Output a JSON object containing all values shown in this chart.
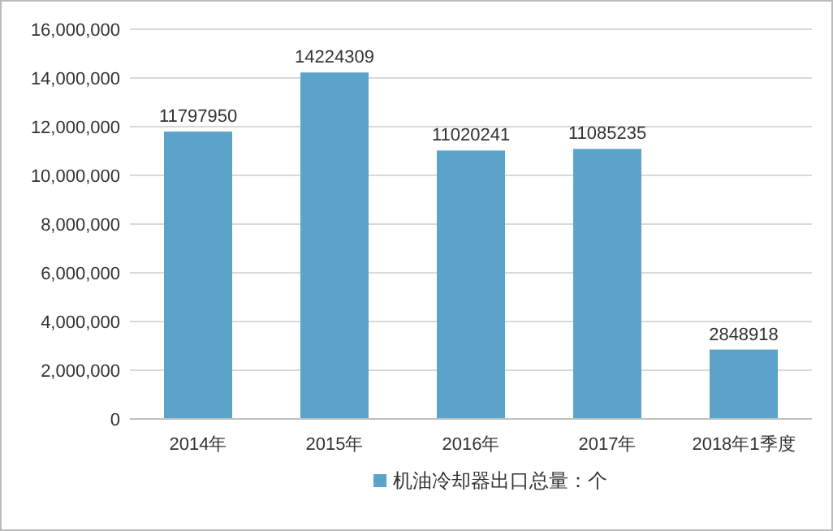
{
  "chart_data": {
    "type": "bar",
    "categories": [
      "2014年",
      "2015年",
      "2016年",
      "2017年",
      "2018年1季度"
    ],
    "series": [
      {
        "name": "机油冷却器出口总量：个",
        "color": "#5ba3c8",
        "values": [
          11797950,
          14224309,
          11020241,
          11085235,
          2848918
        ]
      }
    ],
    "ylim": [
      0,
      16000000
    ],
    "yticks": [
      0,
      {
        "value": 2000000,
        "label": "2,000,000"
      },
      {
        "value": 4000000,
        "label": "4,000,000"
      },
      {
        "value": 6000000,
        "label": "6,000,000"
      },
      {
        "value": 8000000,
        "label": "8,000,000"
      },
      {
        "value": 10000000,
        "label": "10,000,000"
      },
      {
        "value": 12000000,
        "label": "12,000,000"
      },
      {
        "value": 14000000,
        "label": "14,000,000"
      },
      {
        "value": 16000000,
        "label": "16,000,000"
      }
    ],
    "grid": "y",
    "data_labels": true,
    "legend": "bottom"
  }
}
